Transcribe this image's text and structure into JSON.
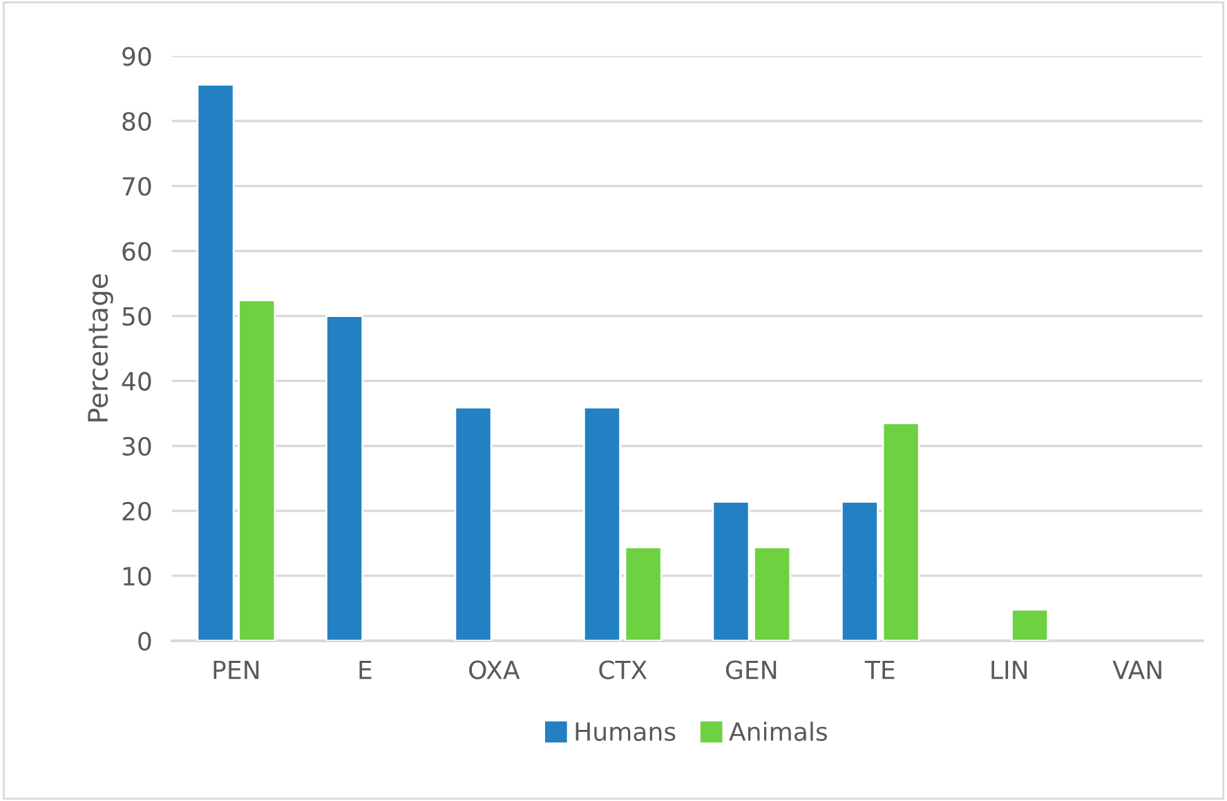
{
  "chart_data": {
    "type": "bar",
    "ylabel": "Percentage",
    "categories": [
      "PEN",
      "E",
      "OXA",
      "CTX",
      "GEN",
      "TE",
      "LIN",
      "VAN"
    ],
    "series": [
      {
        "name": "Humans",
        "color": "#2280c3",
        "values": [
          85.6,
          50,
          35.9,
          35.9,
          21.4,
          21.4,
          null,
          null
        ]
      },
      {
        "name": "Animals",
        "color": "#6dd142",
        "values": [
          52.4,
          null,
          null,
          14.4,
          14.4,
          33.5,
          4.8,
          null
        ]
      }
    ],
    "ylim": [
      0,
      90
    ],
    "yticks": [
      0,
      10,
      20,
      30,
      40,
      50,
      60,
      70,
      80,
      90
    ],
    "grid": "y",
    "legend": "bottom"
  }
}
